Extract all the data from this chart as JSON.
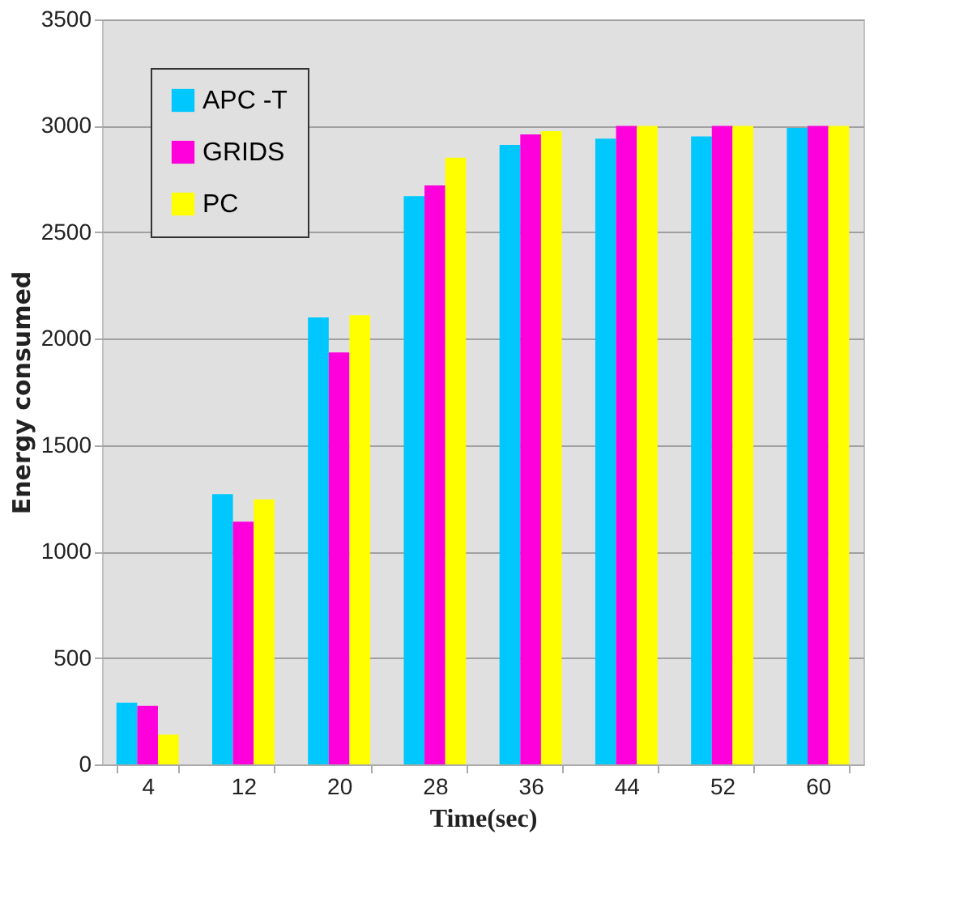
{
  "chart_data": {
    "type": "bar",
    "xlabel": "Time(sec)",
    "ylabel": "Energy consumed",
    "categories": [
      "4",
      "12",
      "20",
      "28",
      "36",
      "44",
      "52",
      "60"
    ],
    "series": [
      {
        "name": "APC -T",
        "color": "#00c8ff",
        "values": [
          290,
          1270,
          2100,
          2670,
          2910,
          2940,
          2950,
          2990
        ]
      },
      {
        "name": "GRIDS",
        "color": "#ff00dd",
        "values": [
          275,
          1140,
          1935,
          2720,
          2960,
          3000,
          3000,
          3000
        ]
      },
      {
        "name": "PC",
        "color": "#ffff00",
        "values": [
          140,
          1245,
          2110,
          2850,
          2975,
          3000,
          3000,
          3000
        ]
      }
    ],
    "ylim": [
      0,
      3500
    ],
    "yticks": [
      0,
      500,
      1000,
      1500,
      2000,
      2500,
      3000,
      3500
    ],
    "grid": "y",
    "legend": "top left"
  }
}
